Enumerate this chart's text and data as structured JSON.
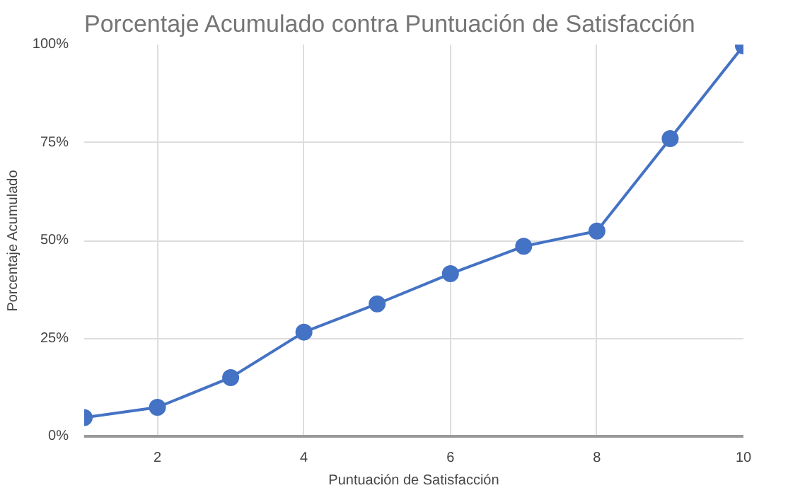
{
  "chart_data": {
    "type": "line",
    "title": "Porcentaje Acumulado contra Puntuación de Satisfacción",
    "xlabel": "Puntuación de Satisfacción",
    "ylabel": "Porcentaje Acumulado",
    "x": [
      1,
      2,
      3,
      4,
      5,
      6,
      7,
      8,
      9,
      10
    ],
    "series": [
      {
        "color": "#4472c4",
        "values": [
          4.8,
          7.4,
          15,
          26.6,
          33.8,
          41.5,
          48.5,
          52.4,
          76,
          99.7
        ]
      }
    ],
    "xlim": [
      1,
      10
    ],
    "xticks": [
      2,
      4,
      6,
      8,
      10
    ],
    "ylim": [
      0,
      100
    ],
    "yticks": [
      {
        "value": 0,
        "label": "0%"
      },
      {
        "value": 25,
        "label": "25%"
      },
      {
        "value": 50,
        "label": "50%"
      },
      {
        "value": 75,
        "label": "75%"
      },
      {
        "value": 100,
        "label": "100%"
      }
    ],
    "grid": true,
    "marker": "circle",
    "line_style": "solid"
  }
}
